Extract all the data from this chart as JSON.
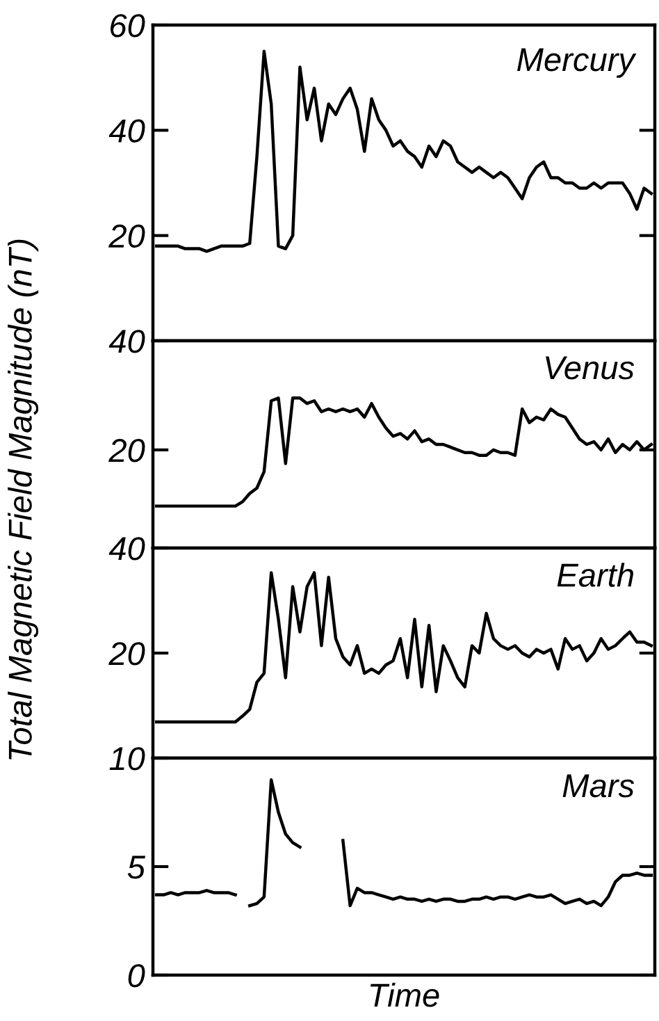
{
  "chart_data": [
    {
      "type": "line",
      "ylabel": "Total Magnetic Field Magnitude (nT)",
      "annotations": [
        "Mercury"
      ],
      "ylim": [
        0,
        60
      ],
      "yticks": [
        20,
        40,
        60
      ],
      "tick_labels": "y",
      "categories": [
        null,
        null,
        null,
        null,
        null,
        null,
        null,
        null,
        null,
        null,
        null,
        null,
        null,
        null,
        null,
        null,
        null,
        null,
        null,
        null,
        null,
        null,
        null,
        null,
        null,
        null,
        null,
        null,
        null,
        null,
        null,
        null,
        null,
        null,
        null,
        null,
        null,
        null,
        null,
        null,
        null,
        null,
        null,
        null,
        null,
        null,
        null,
        null,
        null,
        null,
        null,
        null,
        null,
        null,
        null,
        null,
        null,
        null,
        null,
        null,
        null,
        null,
        null,
        null,
        null,
        null,
        null,
        null,
        null,
        null
      ],
      "series": [
        {
          "color": "#000000",
          "values": [
            18,
            18,
            18,
            18,
            17.5,
            17.5,
            17.5,
            17,
            17.5,
            18,
            18,
            18,
            18,
            18.5,
            35,
            55,
            45,
            18,
            17.5,
            20,
            52,
            42,
            48,
            38,
            45,
            43,
            46,
            48,
            44,
            36,
            46,
            42,
            40,
            37,
            38,
            36,
            35,
            33,
            37,
            35,
            38,
            37,
            34,
            33,
            32,
            33,
            32,
            31,
            32,
            31,
            29,
            27,
            31,
            33,
            34,
            31,
            31,
            30,
            30,
            29,
            29,
            30,
            29,
            30,
            30,
            30,
            28,
            25,
            29,
            28
          ]
        }
      ]
    },
    {
      "type": "line",
      "annotations": [
        "Venus"
      ],
      "ylim": [
        2,
        40
      ],
      "yticks": [
        20,
        40
      ],
      "tick_labels": "y",
      "categories": [
        null,
        null,
        null,
        null,
        null,
        null,
        null,
        null,
        null,
        null,
        null,
        null,
        null,
        null,
        null,
        null,
        null,
        null,
        null,
        null,
        null,
        null,
        null,
        null,
        null,
        null,
        null,
        null,
        null,
        null,
        null,
        null,
        null,
        null,
        null,
        null,
        null,
        null,
        null,
        null,
        null,
        null,
        null,
        null,
        null,
        null,
        null,
        null,
        null,
        null,
        null,
        null,
        null,
        null,
        null,
        null,
        null,
        null,
        null,
        null,
        null,
        null,
        null,
        null,
        null,
        null,
        null,
        null,
        null,
        null
      ],
      "series": [
        {
          "color": "#000000",
          "values": [
            9.7,
            9.7,
            9.7,
            9.7,
            9.7,
            9.7,
            9.7,
            9.7,
            9.7,
            9.7,
            9.7,
            9.7,
            10.5,
            12,
            13,
            16,
            29,
            29.5,
            17.5,
            29.5,
            29.5,
            28.5,
            29,
            27,
            27.5,
            27,
            27.5,
            27,
            27.5,
            26,
            28.5,
            26,
            24,
            22.5,
            23,
            22,
            23.5,
            21.5,
            22,
            21,
            21,
            20.5,
            20,
            19.5,
            19.5,
            19,
            19,
            20,
            19.5,
            19.5,
            19,
            27.5,
            25,
            26,
            25.5,
            27.5,
            26.5,
            26,
            24,
            22,
            21,
            21.5,
            20,
            22,
            19.5,
            21,
            20,
            21.5,
            20,
            21
          ]
        }
      ]
    },
    {
      "type": "line",
      "annotations": [
        "Earth"
      ],
      "log": true,
      "ylim": [
        10,
        40
      ],
      "yticks": [
        20,
        40
      ],
      "tick_labels": "y",
      "categories": [
        null,
        null,
        null,
        null,
        null,
        null,
        null,
        null,
        null,
        null,
        null,
        null,
        null,
        null,
        null,
        null,
        null,
        null,
        null,
        null,
        null,
        null,
        null,
        null,
        null,
        null,
        null,
        null,
        null,
        null,
        null,
        null,
        null,
        null,
        null,
        null,
        null,
        null,
        null,
        null,
        null,
        null,
        null,
        null,
        null,
        null,
        null,
        null,
        null,
        null,
        null,
        null,
        null,
        null,
        null,
        null,
        null,
        null,
        null,
        null,
        null,
        null,
        null,
        null,
        null,
        null,
        null,
        null,
        null,
        null
      ],
      "series": [
        {
          "color": "#000000",
          "values": [
            12.7,
            12.7,
            12.7,
            12.7,
            12.7,
            12.7,
            12.7,
            12.7,
            12.7,
            12.7,
            12.7,
            12.7,
            13.2,
            13.8,
            16.5,
            17.5,
            34,
            25,
            17,
            31,
            23,
            31,
            34,
            21,
            33,
            22,
            19.5,
            18.5,
            21,
            17.5,
            18,
            17.5,
            18.5,
            19,
            22,
            17,
            25,
            16,
            24,
            15.5,
            21,
            19,
            17,
            16,
            21,
            20,
            26,
            22,
            21,
            20.5,
            21,
            20,
            19.5,
            20.5,
            20,
            20.5,
            18,
            22,
            20.5,
            21,
            19,
            20,
            22,
            20.5,
            21,
            22,
            23,
            21.5,
            21.5,
            21
          ]
        }
      ]
    },
    {
      "type": "line",
      "xlabel": "Time",
      "annotations": [
        "Mars"
      ],
      "ylim": [
        0,
        10
      ],
      "yticks": [
        0,
        5,
        10
      ],
      "tick_labels": "y",
      "categories": [
        null,
        null,
        null,
        null,
        null,
        null,
        null,
        null,
        null,
        null,
        null,
        null,
        null,
        null,
        null,
        null,
        null,
        null,
        null,
        null,
        null,
        null,
        null,
        null,
        null,
        null,
        null,
        null,
        null,
        null,
        null,
        null,
        null,
        null,
        null,
        null,
        null,
        null,
        null,
        null,
        null,
        null,
        null,
        null,
        null,
        null,
        null,
        null,
        null,
        null,
        null,
        null,
        null,
        null,
        null,
        null,
        null,
        null,
        null,
        null,
        null,
        null,
        null,
        null,
        null,
        null,
        null,
        null,
        null,
        null
      ],
      "series": [
        {
          "color": "#000000",
          "values": [
            3.7,
            3.7,
            3.8,
            3.7,
            3.8,
            3.8,
            3.8,
            3.9,
            3.8,
            3.8,
            3.8,
            3.7,
            null,
            3.2,
            3.3,
            3.6,
            9,
            7.5,
            6.5,
            6.1,
            5.9,
            null,
            null,
            null,
            null,
            null,
            6.2,
            3.2,
            4.0,
            3.8,
            3.8,
            3.7,
            3.6,
            3.5,
            3.6,
            3.5,
            3.5,
            3.4,
            3.5,
            3.4,
            3.5,
            3.5,
            3.4,
            3.4,
            3.5,
            3.5,
            3.6,
            3.5,
            3.6,
            3.6,
            3.5,
            3.6,
            3.7,
            3.6,
            3.6,
            3.7,
            3.5,
            3.3,
            3.4,
            3.5,
            3.3,
            3.4,
            3.2,
            3.6,
            4.3,
            4.6,
            4.6,
            4.7,
            4.6,
            4.6
          ]
        }
      ]
    }
  ]
}
